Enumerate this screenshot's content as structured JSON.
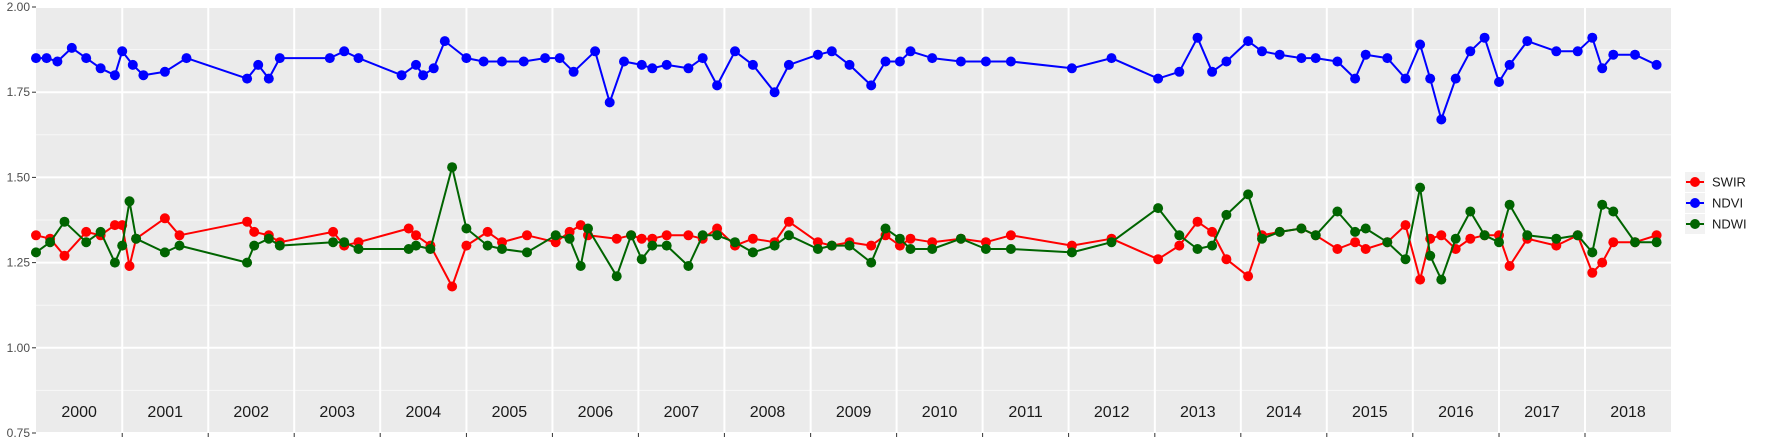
{
  "chart_data": {
    "type": "line",
    "title": "",
    "xlabel": "",
    "ylabel": "",
    "xlim": [
      "2000-01-01",
      "2019-01-01"
    ],
    "ylim": [
      0.75,
      2.0
    ],
    "yticks": [
      "0.75",
      "1.00",
      "1.25",
      "1.50",
      "1.75",
      "2.00"
    ],
    "year_labels": [
      "2000",
      "2001",
      "2002",
      "2003",
      "2004",
      "2005",
      "2006",
      "2007",
      "2008",
      "2009",
      "2010",
      "2011",
      "2012",
      "2013",
      "2014",
      "2015",
      "2016",
      "2017",
      "2018"
    ],
    "grid": true,
    "legend_position": "right",
    "background": "#ebebeb",
    "series": [
      {
        "name": "SWIR",
        "color": "#ff0000",
        "x": [
          "2000-01-01",
          "2000-03-01",
          "2000-05-01",
          "2000-08-01",
          "2000-10-01",
          "2000-12-01",
          "2001-01-01",
          "2001-02-01",
          "2001-03-01",
          "2001-07-01",
          "2001-09-01",
          "2002-06-15",
          "2002-07-15",
          "2002-09-15",
          "2002-11-01",
          "2003-06-15",
          "2003-08-01",
          "2003-10-01",
          "2004-05-01",
          "2004-06-01",
          "2004-08-01",
          "2004-11-01",
          "2005-01-01",
          "2005-04-01",
          "2005-06-01",
          "2005-09-15",
          "2006-01-15",
          "2006-03-15",
          "2006-05-01",
          "2006-06-01",
          "2006-10-01",
          "2006-12-01",
          "2007-01-15",
          "2007-03-01",
          "2007-05-01",
          "2007-08-01",
          "2007-10-01",
          "2007-12-01",
          "2008-02-15",
          "2008-05-01",
          "2008-08-01",
          "2008-10-01",
          "2009-02-01",
          "2009-04-01",
          "2009-06-15",
          "2009-09-15",
          "2009-11-15",
          "2010-01-15",
          "2010-03-01",
          "2010-06-01",
          "2010-10-01",
          "2011-01-15",
          "2011-05-01",
          "2012-01-15",
          "2012-07-01",
          "2013-01-15",
          "2013-04-15",
          "2013-07-01",
          "2013-09-01",
          "2013-11-01",
          "2014-02-01",
          "2014-04-01",
          "2014-06-15",
          "2014-09-15",
          "2014-11-15",
          "2015-02-15",
          "2015-05-01",
          "2015-06-15",
          "2015-09-15",
          "2015-12-01",
          "2016-02-01",
          "2016-03-15",
          "2016-05-01",
          "2016-07-01",
          "2016-09-01",
          "2016-11-01",
          "2017-01-01",
          "2017-02-15",
          "2017-05-01",
          "2017-09-01",
          "2017-12-01",
          "2018-02-01",
          "2018-03-15",
          "2018-05-01",
          "2018-08-01",
          "2018-11-01"
        ],
        "y": [
          1.33,
          1.32,
          1.27,
          1.34,
          1.33,
          1.36,
          1.36,
          1.24,
          1.32,
          1.38,
          1.33,
          1.37,
          1.34,
          1.33,
          1.31,
          1.34,
          1.3,
          1.31,
          1.35,
          1.33,
          1.3,
          1.18,
          1.3,
          1.34,
          1.31,
          1.33,
          1.31,
          1.34,
          1.36,
          1.33,
          1.32,
          1.33,
          1.32,
          1.32,
          1.33,
          1.33,
          1.32,
          1.35,
          1.3,
          1.32,
          1.31,
          1.37,
          1.31,
          1.3,
          1.31,
          1.3,
          1.33,
          1.3,
          1.32,
          1.31,
          1.32,
          1.31,
          1.33,
          1.3,
          1.32,
          1.26,
          1.3,
          1.37,
          1.34,
          1.26,
          1.21,
          1.33,
          1.34,
          1.35,
          1.33,
          1.29,
          1.31,
          1.29,
          1.31,
          1.36,
          1.2,
          1.32,
          1.33,
          1.29,
          1.32,
          1.33,
          1.33,
          1.24,
          1.32,
          1.3,
          1.33,
          1.22,
          1.25,
          1.31,
          1.31,
          1.33
        ]
      },
      {
        "name": "NDVI",
        "color": "#0000ff",
        "x": [
          "2000-01-01",
          "2000-02-15",
          "2000-04-01",
          "2000-06-01",
          "2000-08-01",
          "2000-10-01",
          "2000-12-01",
          "2001-01-01",
          "2001-02-15",
          "2001-04-01",
          "2001-07-01",
          "2001-10-01",
          "2002-06-15",
          "2002-08-01",
          "2002-09-15",
          "2002-11-01",
          "2003-06-01",
          "2003-08-01",
          "2003-10-01",
          "2004-04-01",
          "2004-06-01",
          "2004-07-01",
          "2004-08-15",
          "2004-10-01",
          "2005-01-01",
          "2005-03-15",
          "2005-06-01",
          "2005-09-01",
          "2005-12-01",
          "2006-02-01",
          "2006-04-01",
          "2006-07-01",
          "2006-09-01",
          "2006-11-01",
          "2007-01-15",
          "2007-03-01",
          "2007-05-01",
          "2007-08-01",
          "2007-10-01",
          "2007-12-01",
          "2008-02-15",
          "2008-05-01",
          "2008-08-01",
          "2008-10-01",
          "2009-02-01",
          "2009-04-01",
          "2009-06-15",
          "2009-09-15",
          "2009-11-15",
          "2010-01-15",
          "2010-03-01",
          "2010-06-01",
          "2010-10-01",
          "2011-01-15",
          "2011-05-01",
          "2012-01-15",
          "2012-07-01",
          "2013-01-15",
          "2013-04-15",
          "2013-07-01",
          "2013-09-01",
          "2013-11-01",
          "2014-02-01",
          "2014-04-01",
          "2014-06-15",
          "2014-09-15",
          "2014-11-15",
          "2015-02-15",
          "2015-05-01",
          "2015-06-15",
          "2015-09-15",
          "2015-12-01",
          "2016-02-01",
          "2016-03-15",
          "2016-05-01",
          "2016-07-01",
          "2016-09-01",
          "2016-11-01",
          "2017-01-01",
          "2017-02-15",
          "2017-05-01",
          "2017-09-01",
          "2017-12-01",
          "2018-02-01",
          "2018-03-15",
          "2018-05-01",
          "2018-08-01",
          "2018-11-01"
        ],
        "y": [
          1.85,
          1.85,
          1.84,
          1.88,
          1.85,
          1.82,
          1.8,
          1.87,
          1.83,
          1.8,
          1.81,
          1.85,
          1.79,
          1.83,
          1.79,
          1.85,
          1.85,
          1.87,
          1.85,
          1.8,
          1.83,
          1.8,
          1.82,
          1.9,
          1.85,
          1.84,
          1.84,
          1.84,
          1.85,
          1.85,
          1.81,
          1.87,
          1.72,
          1.84,
          1.83,
          1.82,
          1.83,
          1.82,
          1.85,
          1.77,
          1.87,
          1.83,
          1.75,
          1.83,
          1.86,
          1.87,
          1.83,
          1.77,
          1.84,
          1.84,
          1.87,
          1.85,
          1.84,
          1.84,
          1.84,
          1.82,
          1.85,
          1.79,
          1.81,
          1.91,
          1.81,
          1.84,
          1.9,
          1.87,
          1.86,
          1.85,
          1.85,
          1.84,
          1.79,
          1.86,
          1.85,
          1.79,
          1.89,
          1.79,
          1.67,
          1.79,
          1.87,
          1.91,
          1.78,
          1.83,
          1.9,
          1.87,
          1.87,
          1.91,
          1.82,
          1.86,
          1.86,
          1.83
        ]
      },
      {
        "name": "NDWI",
        "color": "#006400",
        "x": [
          "2000-01-01",
          "2000-03-01",
          "2000-05-01",
          "2000-08-01",
          "2000-10-01",
          "2000-12-01",
          "2001-01-01",
          "2001-02-01",
          "2001-03-01",
          "2001-07-01",
          "2001-09-01",
          "2002-06-15",
          "2002-07-15",
          "2002-09-15",
          "2002-11-01",
          "2003-06-15",
          "2003-08-01",
          "2003-10-01",
          "2004-05-01",
          "2004-06-01",
          "2004-08-01",
          "2004-11-01",
          "2005-01-01",
          "2005-04-01",
          "2005-06-01",
          "2005-09-15",
          "2006-01-15",
          "2006-03-15",
          "2006-05-01",
          "2006-06-01",
          "2006-10-01",
          "2006-12-01",
          "2007-01-15",
          "2007-03-01",
          "2007-05-01",
          "2007-08-01",
          "2007-10-01",
          "2007-12-01",
          "2008-02-15",
          "2008-05-01",
          "2008-08-01",
          "2008-10-01",
          "2009-02-01",
          "2009-04-01",
          "2009-06-15",
          "2009-09-15",
          "2009-11-15",
          "2010-01-15",
          "2010-03-01",
          "2010-06-01",
          "2010-10-01",
          "2011-01-15",
          "2011-05-01",
          "2012-01-15",
          "2012-07-01",
          "2013-01-15",
          "2013-04-15",
          "2013-07-01",
          "2013-09-01",
          "2013-11-01",
          "2014-02-01",
          "2014-04-01",
          "2014-06-15",
          "2014-09-15",
          "2014-11-15",
          "2015-02-15",
          "2015-05-01",
          "2015-06-15",
          "2015-09-15",
          "2015-12-01",
          "2016-02-01",
          "2016-03-15",
          "2016-05-01",
          "2016-07-01",
          "2016-09-01",
          "2016-11-01",
          "2017-01-01",
          "2017-02-15",
          "2017-05-01",
          "2017-09-01",
          "2017-12-01",
          "2018-02-01",
          "2018-03-15",
          "2018-05-01",
          "2018-08-01",
          "2018-11-01"
        ],
        "y": [
          1.28,
          1.31,
          1.37,
          1.31,
          1.34,
          1.25,
          1.3,
          1.43,
          1.32,
          1.28,
          1.3,
          1.25,
          1.3,
          1.32,
          1.3,
          1.31,
          1.31,
          1.29,
          1.29,
          1.3,
          1.29,
          1.53,
          1.35,
          1.3,
          1.29,
          1.28,
          1.33,
          1.32,
          1.24,
          1.35,
          1.21,
          1.33,
          1.26,
          1.3,
          1.3,
          1.24,
          1.33,
          1.33,
          1.31,
          1.28,
          1.3,
          1.33,
          1.29,
          1.3,
          1.3,
          1.25,
          1.35,
          1.32,
          1.29,
          1.29,
          1.32,
          1.29,
          1.29,
          1.28,
          1.31,
          1.41,
          1.33,
          1.29,
          1.3,
          1.39,
          1.45,
          1.32,
          1.34,
          1.35,
          1.33,
          1.4,
          1.34,
          1.35,
          1.31,
          1.26,
          1.47,
          1.27,
          1.2,
          1.32,
          1.4,
          1.33,
          1.31,
          1.42,
          1.33,
          1.32,
          1.33,
          1.28,
          1.42,
          1.4,
          1.31,
          1.31
        ]
      }
    ]
  }
}
